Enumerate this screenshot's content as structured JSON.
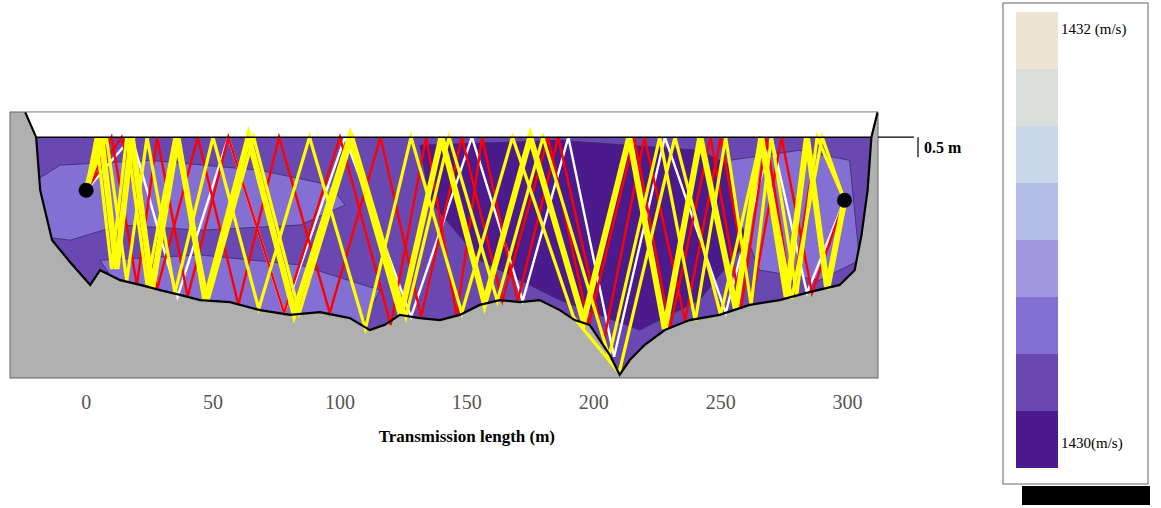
{
  "chart_data": {
    "type": "ray_section",
    "x_label": "Transmission length (m)",
    "xlim": [
      -30,
      312
    ],
    "ylim": [
      -6.03,
      0.63
    ],
    "xticks": [
      0,
      50,
      100,
      150,
      200,
      250,
      300
    ],
    "tick_labels": "x",
    "grid": false,
    "scale_bar": {
      "value": 0.5,
      "label": "0.5 m"
    },
    "bathymetry": {
      "x": [
        -24.0,
        -19.7,
        -18.1,
        -13.4,
        -6.3,
        1.6,
        5.5,
        13.4,
        21.3,
        29.1,
        37.0,
        44.9,
        56.7,
        68.5,
        80.3,
        92.1,
        103.9,
        111.8,
        117.7,
        123.6,
        131.5,
        139.4,
        147.2,
        155.1,
        163.0,
        170.9,
        178.7,
        186.6,
        192.5,
        198.4,
        202.4,
        206.3,
        210.2,
        214.2,
        220.1,
        228.0,
        237.8,
        249.6,
        261.4,
        273.2,
        285.0,
        296.9,
        302.8,
        305.5,
        307.9,
        309.4,
        311.8
      ],
      "values": [
        0.62,
        0.0,
        -1.33,
        -2.58,
        -3.13,
        -3.7,
        -3.33,
        -3.58,
        -3.7,
        -3.83,
        -3.95,
        -4.08,
        -4.13,
        -4.33,
        -4.45,
        -4.38,
        -4.53,
        -4.83,
        -4.7,
        -4.45,
        -4.53,
        -4.58,
        -4.45,
        -4.2,
        -4.08,
        -4.13,
        -4.08,
        -4.33,
        -4.58,
        -4.7,
        -5.08,
        -5.45,
        -5.95,
        -5.58,
        -5.2,
        -4.83,
        -4.58,
        -4.45,
        -4.2,
        -4.08,
        -3.88,
        -3.7,
        -3.33,
        -2.45,
        -1.33,
        0.0,
        0.62
      ]
    },
    "regions": [
      {
        "level": 1430.3,
        "x": [
          -30,
          312,
          312,
          -30
        ],
        "values": [
          0.63,
          0.63,
          -6.03,
          -6.03
        ]
      },
      {
        "level": 1430.6,
        "x": [
          -26.0,
          -10.2,
          25.2,
          68.5,
          96.1,
          102.0,
          84.3,
          44.9,
          13.4,
          -6.3,
          -22.0
        ],
        "values": [
          -1.33,
          -0.7,
          -0.58,
          -0.83,
          -1.2,
          -1.7,
          -2.2,
          -2.33,
          -2.2,
          -2.58,
          -2.45
        ]
      },
      {
        "level": 1430.6,
        "x": [
          5.5,
          44.9,
          84.3,
          115.7,
          107.9,
          64.6,
          13.4
        ],
        "values": [
          -3.08,
          -2.95,
          -3.2,
          -3.83,
          -4.83,
          -4.33,
          -3.83
        ]
      },
      {
        "level": 1430.1,
        "x": [
          131.5,
          186.6,
          241.7,
          265.4,
          257.5,
          241.7,
          218.1,
          186.6,
          155.1,
          135.4
        ],
        "values": [
          -0.2,
          -0.08,
          -0.33,
          -1.08,
          -2.83,
          -4.08,
          -4.83,
          -4.08,
          -3.08,
          -1.58
        ]
      },
      {
        "level": 1430.6,
        "x": [
          253.5,
          281.1,
          300.8,
          304.7,
          289.0,
          265.4,
          257.5
        ],
        "values": [
          -0.58,
          -0.33,
          -0.58,
          -3.08,
          -3.58,
          -3.33,
          -2.08
        ]
      }
    ],
    "series": [
      {
        "color": "#ffffff",
        "line_style": "solid",
        "x": [
          0,
          18,
          36,
          56,
          78,
          102,
          128,
          152,
          172,
          190,
          208,
          228,
          252,
          270,
          284,
          298.8
        ],
        "values": [
          -1.33,
          0,
          -4.0,
          0,
          -4.4,
          0,
          -4.5,
          0,
          -4.1,
          0,
          -5.5,
          0,
          -4.4,
          0,
          -3.9,
          -1.58
        ]
      },
      {
        "color": "#ff0000",
        "line_style": "solid",
        "x": [
          0,
          10,
          20,
          28,
          40,
          56,
          78,
          100,
          120,
          134,
          146,
          156,
          170,
          186,
          204,
          220,
          236,
          250,
          262,
          274,
          286,
          298.8
        ],
        "values": [
          -1.33,
          0,
          -3.7,
          0,
          -4.0,
          0,
          -4.4,
          0,
          -4.7,
          0,
          -4.5,
          0,
          -4.1,
          0,
          -5.1,
          0,
          -4.6,
          0,
          -4.2,
          0,
          -3.9,
          -1.58
        ]
      },
      {
        "color": "#ff0000",
        "line_style": "solid",
        "x": [
          0,
          14,
          28,
          44,
          60,
          76,
          96,
          116,
          132,
          148,
          164,
          182,
          198,
          216,
          230,
          246,
          258,
          268,
          278,
          288,
          298.8
        ],
        "values": [
          -1.33,
          0,
          -3.8,
          0,
          -4.2,
          0,
          -4.4,
          0,
          -4.5,
          0,
          -4.1,
          0,
          -4.7,
          0,
          -4.8,
          0,
          -4.3,
          0,
          -4.05,
          0,
          -1.58
        ]
      },
      {
        "color": "#ffff00",
        "line_style": "solid",
        "x": [
          0,
          8,
          16,
          24,
          35,
          50,
          68,
          88,
          110,
          128,
          148,
          168,
          192,
          210,
          232,
          250,
          266,
          278,
          290,
          298.8
        ],
        "values": [
          -1.33,
          0,
          -3.6,
          0,
          -3.9,
          0,
          -4.3,
          0,
          -4.8,
          0,
          -4.4,
          0,
          -4.5,
          -5.9,
          0,
          -4.45,
          0,
          -4.05,
          0,
          -1.58
        ]
      },
      {
        "color": "#ffff00",
        "line_style": "solid",
        "x": [
          0,
          4,
          10,
          16,
          24,
          35,
          48,
          66,
          84,
          105,
          126,
          143,
          162,
          180,
          206,
          226,
          240,
          252,
          262,
          270,
          280,
          288,
          298.8
        ],
        "values": [
          -1.33,
          0,
          -3.3,
          0,
          -3.7,
          0,
          -4.1,
          0,
          -4.4,
          0,
          -4.5,
          0,
          -4.1,
          0,
          -5.5,
          0,
          -4.6,
          0,
          -4.2,
          0,
          -3.95,
          0,
          -1.58
        ]
      },
      {
        "color": "#ffff00",
        "line_style": "thick",
        "x": [
          0,
          6,
          12,
          18,
          26,
          36,
          47,
          64,
          82,
          104,
          124,
          140,
          157,
          175,
          196,
          214,
          228,
          242,
          256,
          266,
          276,
          284,
          292,
          298.8
        ],
        "values": [
          -1.33,
          0,
          -3.3,
          0,
          -3.8,
          0,
          -4.1,
          0,
          -4.4,
          0,
          -4.45,
          0,
          -4.15,
          0,
          -4.6,
          0,
          -4.8,
          0,
          -4.3,
          0,
          -4.0,
          0,
          -3.8,
          -1.58
        ]
      }
    ],
    "stations": {
      "x": [
        0,
        298.8
      ],
      "values": [
        -1.33,
        -1.58
      ]
    },
    "colorbar": {
      "range": [
        1430,
        1432
      ],
      "ticks": [
        {
          "value": 1432,
          "label": "1432 (m/s)"
        },
        {
          "value": 1430,
          "label": "1430(m/s)"
        }
      ],
      "colors": [
        "#4b1a8c",
        "#6a48b2",
        "#8470d4",
        "#a197e0",
        "#b4bce8",
        "#c8d8e6",
        "#dadfdc",
        "#ede4d3"
      ]
    }
  }
}
